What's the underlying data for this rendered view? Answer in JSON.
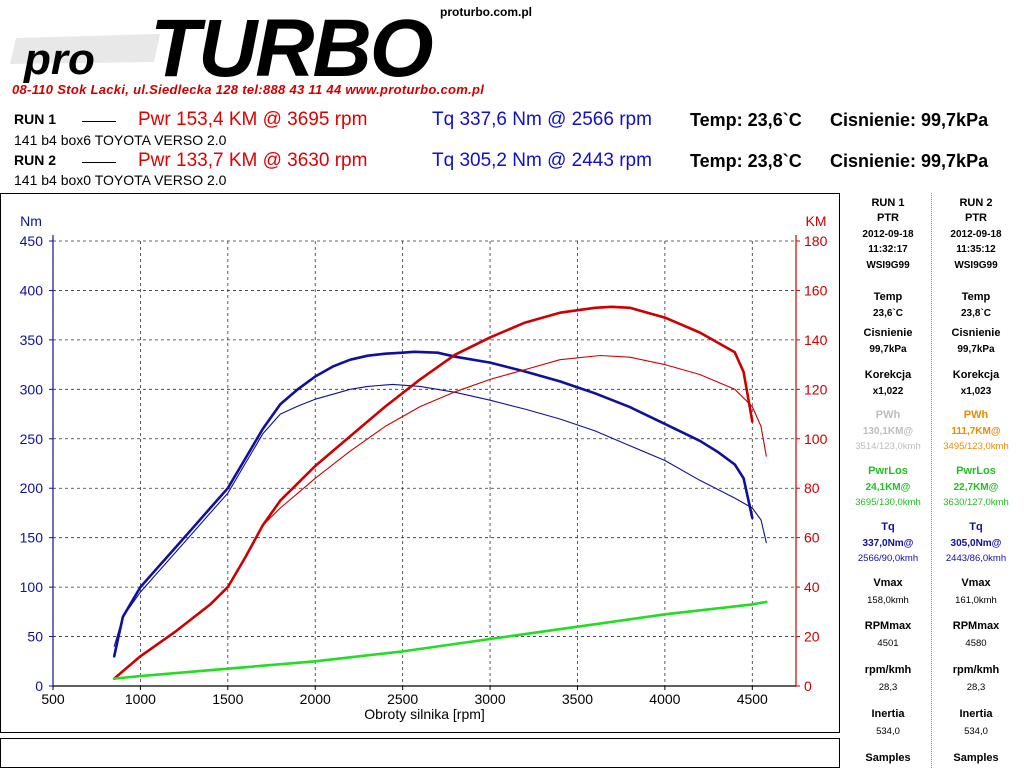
{
  "brand": {
    "logo_pro": "pro",
    "logo_turbo": "TURBO",
    "logo_domain": "proturbo.com.pl",
    "address": "08-110 Stok Lacki,   ul.Siedlecka 128   tel:888 43 11 44   www.proturbo.com.pl"
  },
  "runs": [
    {
      "label": "RUN 1",
      "pwr": "Pwr  153,4 KM @ 3695 rpm",
      "tq": "Tq 337,6 Nm @ 2566 rpm",
      "temp": "Temp: 23,6`C",
      "cis": "Cisnienie: 99,7kPa",
      "desc": "141 b4 box6 TOYOTA VERSO 2.0"
    },
    {
      "label": "RUN 2",
      "pwr": "Pwr  133,7 KM @ 3630 rpm",
      "tq": "Tq 305,2 Nm @ 2443 rpm",
      "temp": "Temp: 23,8`C",
      "cis": "Cisnienie: 99,7kPa",
      "desc": "141 b4 box0 TOYOTA VERSO 2.0"
    }
  ],
  "side": {
    "run1": {
      "title": "RUN 1",
      "ptr": "PTR",
      "date": "2012-09-18",
      "time": "11:32:17",
      "code": "WSI9G99",
      "temp_l": "Temp",
      "temp_v": "23,6`C",
      "cis_l": "Cisnienie",
      "cis_v": "99,7kPa",
      "kor_l": "Korekcja",
      "kor_v": "x1,022",
      "pwh_l": "PWh",
      "pwh_v": "130,1KM@",
      "pwh_s": "3514/123,0kmh",
      "los_l": "PwrLos",
      "los_v": "24,1KM@",
      "los_s": "3695/130,0kmh",
      "tq_l": "Tq",
      "tq_v": "337,0Nm@",
      "tq_s": "2566/90,0kmh",
      "vmax_l": "Vmax",
      "vmax_v": "158,0kmh",
      "rpm_l": "RPMmax",
      "rpm_v": "4501",
      "rk_l": "rpm/kmh",
      "rk_v": "28,3",
      "in_l": "Inertia",
      "in_v": "534,0",
      "sa_l": "Samples"
    },
    "run2": {
      "title": "RUN 2",
      "ptr": "PTR",
      "date": "2012-09-18",
      "time": "11:35:12",
      "code": "WSI9G99",
      "temp_l": "Temp",
      "temp_v": "23,8`C",
      "cis_l": "Cisnienie",
      "cis_v": "99,7kPa",
      "kor_l": "Korekcja",
      "kor_v": "x1,023",
      "pwh_l": "PWh",
      "pwh_v": "111,7KM@",
      "pwh_s": "3495/123,0kmh",
      "los_l": "PwrLos",
      "los_v": "22,7KM@",
      "los_s": "3630/127,0kmh",
      "tq_l": "Tq",
      "tq_v": "305,0Nm@",
      "tq_s": "2443/86,0kmh",
      "vmax_l": "Vmax",
      "vmax_v": "161,0kmh",
      "rpm_l": "RPMmax",
      "rpm_v": "4580",
      "rk_l": "rpm/kmh",
      "rk_v": "28,3",
      "in_l": "Inertia",
      "in_v": "534,0",
      "sa_l": "Samples"
    },
    "colors": {
      "pwh1": "#bdbdbd",
      "pwh2": "#f08a00",
      "los": "#20c020",
      "tq": "#1010a0"
    }
  },
  "chart_data": {
    "type": "line",
    "xlabel": "Obroty silnika [rpm]",
    "y_left_label": "Nm",
    "y_right_label": "KM",
    "x_range": [
      500,
      4750
    ],
    "y_left_range": [
      0,
      450
    ],
    "y_right_range": [
      0,
      180
    ],
    "x_ticks": [
      500,
      1000,
      1500,
      2000,
      2500,
      3000,
      3500,
      4000,
      4500
    ],
    "y_left_ticks": [
      0,
      50,
      100,
      150,
      200,
      250,
      300,
      350,
      400,
      450
    ],
    "y_right_ticks": [
      0,
      20,
      40,
      60,
      80,
      100,
      120,
      140,
      160,
      180
    ],
    "grid": true,
    "colors": {
      "torque": "#10109a",
      "power": "#cc0000",
      "loss": "#22dd22"
    },
    "series": [
      {
        "axis": "left",
        "color_key": "torque",
        "width": "thick",
        "x": [
          850,
          900,
          1000,
          1100,
          1200,
          1300,
          1400,
          1500,
          1600,
          1700,
          1800,
          1900,
          2000,
          2100,
          2200,
          2300,
          2400,
          2500,
          2566,
          2700,
          2800,
          3000,
          3200,
          3400,
          3500,
          3600,
          3800,
          4000,
          4200,
          4300,
          4400,
          4450,
          4500
        ],
        "y": [
          30,
          70,
          100,
          120,
          140,
          160,
          180,
          200,
          230,
          260,
          285,
          300,
          313,
          323,
          330,
          334,
          336,
          337,
          338,
          337,
          333,
          327,
          318,
          308,
          302,
          296,
          282,
          265,
          248,
          237,
          224,
          210,
          170
        ]
      },
      {
        "axis": "left",
        "color_key": "torque",
        "width": "thin",
        "x": [
          850,
          900,
          1000,
          1100,
          1200,
          1300,
          1400,
          1500,
          1600,
          1700,
          1800,
          1900,
          2000,
          2100,
          2200,
          2300,
          2443,
          2600,
          2800,
          3000,
          3200,
          3400,
          3600,
          3800,
          4000,
          4200,
          4400,
          4500,
          4550,
          4580
        ],
        "y": [
          40,
          70,
          95,
          115,
          135,
          155,
          175,
          195,
          225,
          255,
          275,
          283,
          290,
          295,
          300,
          303,
          305,
          303,
          297,
          289,
          280,
          270,
          258,
          243,
          228,
          208,
          190,
          180,
          168,
          145
        ]
      },
      {
        "axis": "right",
        "color_key": "power",
        "width": "thick",
        "x": [
          850,
          1000,
          1200,
          1400,
          1500,
          1600,
          1700,
          1800,
          1900,
          2000,
          2200,
          2400,
          2600,
          2800,
          3000,
          3200,
          3400,
          3600,
          3695,
          3800,
          4000,
          4200,
          4300,
          4400,
          4450,
          4500
        ],
        "y": [
          3,
          12,
          22,
          33,
          40,
          52,
          65,
          75,
          82,
          89,
          101,
          113,
          124,
          134,
          141,
          147,
          151,
          153,
          153.4,
          153,
          149,
          143,
          139,
          135,
          127,
          107
        ]
      },
      {
        "axis": "right",
        "color_key": "power",
        "width": "thin",
        "x": [
          850,
          1000,
          1200,
          1400,
          1500,
          1600,
          1700,
          1800,
          1900,
          2000,
          2200,
          2400,
          2600,
          2800,
          3000,
          3200,
          3400,
          3630,
          3800,
          4000,
          4200,
          4400,
          4500,
          4550,
          4580
        ],
        "y": [
          3,
          12,
          22,
          33,
          40,
          52,
          65,
          72,
          78,
          84,
          95,
          105,
          113,
          119,
          124,
          128,
          132,
          133.7,
          133,
          130,
          126,
          120,
          113,
          105,
          93
        ]
      },
      {
        "axis": "right",
        "color_key": "loss",
        "width": "thick",
        "x": [
          850,
          1000,
          1500,
          2000,
          2500,
          3000,
          3500,
          4000,
          4500,
          4580
        ],
        "y": [
          3,
          4,
          7,
          10,
          14,
          19,
          24,
          29,
          33,
          34
        ]
      }
    ]
  }
}
